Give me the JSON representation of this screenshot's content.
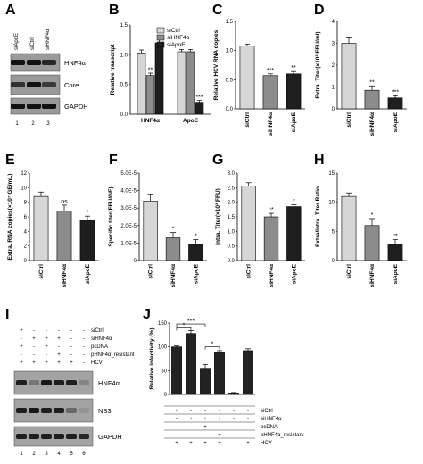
{
  "colors": {
    "siCtrl": "#d8d8d8",
    "siHNF4a": "#8c8c8c",
    "siApoE": "#1e1e1e",
    "blot_bg": "#6e6e6e",
    "band": "#111111"
  },
  "panel_letters": [
    "A",
    "B",
    "C",
    "D",
    "E",
    "F",
    "G",
    "H",
    "I",
    "J"
  ],
  "blot_A": {
    "lane_headers": [
      "siApoE",
      "siCtrl",
      "siHNF4α"
    ],
    "proteins": [
      "HNF4α",
      "Core",
      "GAPDH"
    ],
    "lane_numbers": [
      "1",
      "2",
      "3"
    ]
  },
  "blot_I": {
    "condition_rows": [
      "siCtrl",
      "siHNF4α",
      "pcDNA",
      "pHNF4α_resistant",
      "HCV"
    ],
    "matrix": [
      [
        "+",
        "-",
        "-",
        "-",
        "-",
        "-"
      ],
      [
        "-",
        "+",
        "+",
        "+",
        "-",
        "-"
      ],
      [
        "+",
        "-",
        "+",
        "-",
        "-",
        "-"
      ],
      [
        "-",
        "-",
        "-",
        "+",
        "-",
        "-"
      ],
      [
        "+",
        "+",
        "+",
        "+",
        "+",
        "-"
      ]
    ],
    "proteins": [
      "HNF4α",
      "NS3",
      "GAPDH"
    ],
    "lane_numbers": [
      "1",
      "2",
      "3",
      "4",
      "5",
      "6"
    ]
  },
  "chart_data": [
    {
      "panel": "B",
      "type": "bar",
      "categories": [
        "HNF4α",
        "ApoE"
      ],
      "series": [
        {
          "name": "siCtrl",
          "values": [
            1.03,
            1.05
          ],
          "errors": [
            0.05,
            0.04
          ]
        },
        {
          "name": "siHNF4α",
          "values": [
            0.65,
            1.05
          ],
          "errors": [
            0.04,
            0.04
          ]
        },
        {
          "name": "siApoE",
          "values": [
            1.2,
            0.2
          ],
          "errors": [
            0.1,
            0.03
          ]
        }
      ],
      "ylabel": "Relative transcript",
      "ylim": [
        0,
        1.5
      ],
      "yticks": [
        "0.0",
        "0.5",
        "1.0",
        "1.5"
      ],
      "significance": [
        [
          "",
          "**",
          ""
        ],
        [
          "",
          "",
          "***"
        ]
      ],
      "legend": "top-right"
    },
    {
      "panel": "C",
      "type": "bar",
      "categories": [
        "siCtrl",
        "siHNF4α",
        "siApoE"
      ],
      "values": [
        1.08,
        0.57,
        0.6
      ],
      "errors": [
        0.03,
        0.03,
        0.04
      ],
      "significance": [
        "",
        "***",
        "**"
      ],
      "ylabel": "Relative HCV RNA copies",
      "ylim": [
        0,
        1.5
      ],
      "yticks": [
        "0.0",
        "0.5",
        "1.0",
        "1.5"
      ]
    },
    {
      "panel": "D",
      "type": "bar",
      "categories": [
        "siCtrl",
        "siHNF4α",
        "siApoE"
      ],
      "values": [
        3.0,
        0.85,
        0.5
      ],
      "errors": [
        0.25,
        0.2,
        0.1
      ],
      "significance": [
        "",
        "**",
        "***"
      ],
      "ylabel": "Extra. Titer(×10³ FFU/ml)",
      "ylim": [
        0,
        4
      ],
      "yticks": [
        "0",
        "1",
        "2",
        "3",
        "4"
      ]
    },
    {
      "panel": "E",
      "type": "bar",
      "categories": [
        "siCtrl",
        "siHNF4α",
        "siApoE"
      ],
      "values": [
        8.8,
        6.8,
        5.6
      ],
      "errors": [
        0.6,
        0.8,
        0.5
      ],
      "significance": [
        "",
        "ns",
        "*"
      ],
      "ylabel": "Extra. RNA copies(×10⁷ GE/mL)",
      "ylim": [
        0,
        12
      ],
      "yticks": [
        "0",
        "2",
        "4",
        "6",
        "8",
        "10",
        "12"
      ]
    },
    {
      "panel": "F",
      "type": "bar",
      "categories": [
        "siCtrl",
        "siHNF4α",
        "siApoE"
      ],
      "values": [
        3.4e-05,
        1.3e-05,
        9e-06
      ],
      "errors": [
        4e-06,
        3e-06,
        3e-06
      ],
      "significance": [
        "",
        "*",
        "*"
      ],
      "ylabel": "Specific titer(FFU/GE)",
      "ylim": [
        0,
        5e-05
      ],
      "yticks": [
        "0",
        "1.0E-5",
        "2.0E-5",
        "3.0E-5",
        "4.0E-5",
        "5.0E-5"
      ]
    },
    {
      "panel": "G",
      "type": "bar",
      "categories": [
        "siCtrl",
        "siHNF4α",
        "siApoE"
      ],
      "values": [
        2.55,
        1.5,
        1.85
      ],
      "errors": [
        0.12,
        0.12,
        0.06
      ],
      "significance": [
        "",
        "**",
        "*"
      ],
      "ylabel": "Intra. Titer(×10³ FFU)",
      "ylim": [
        0,
        3
      ],
      "yticks": [
        "0.0",
        "0.5",
        "1.0",
        "1.5",
        "2.0",
        "2.5",
        "3.0"
      ]
    },
    {
      "panel": "H",
      "type": "bar",
      "categories": [
        "siCtrl",
        "siHNF4α",
        "siApoE"
      ],
      "values": [
        11.0,
        6.0,
        2.8
      ],
      "errors": [
        0.6,
        1.2,
        0.8
      ],
      "significance": [
        "",
        "*",
        "**"
      ],
      "ylabel": "Extra/Intra. Titer Ratio",
      "ylim": [
        0,
        15
      ],
      "yticks": [
        "0",
        "5",
        "10",
        "15"
      ]
    },
    {
      "panel": "J",
      "type": "bar",
      "categories": [
        "1",
        "2",
        "3",
        "4",
        "5",
        "6"
      ],
      "values": [
        100,
        128,
        55,
        88,
        3,
        92
      ],
      "errors": [
        2,
        6,
        8,
        4,
        1,
        4
      ],
      "ylabel": "Relative infectivity (%)",
      "ylim": [
        0,
        150
      ],
      "yticks": [
        "0",
        "50",
        "100",
        "150"
      ],
      "brackets": [
        {
          "from": 0,
          "to": 1,
          "label": "*"
        },
        {
          "from": 0,
          "to": 2,
          "label": "***"
        },
        {
          "from": 2,
          "to": 3,
          "label": "*"
        }
      ],
      "condition_rows": [
        "siCtrl",
        "siHNF4α",
        "pcDNA",
        "pHNF4α_resistant",
        "HCV"
      ],
      "matrix": [
        [
          "+",
          "-",
          "-",
          "-",
          "-",
          "-"
        ],
        [
          "-",
          "+",
          "+",
          "+",
          "-",
          "-"
        ],
        [
          "-",
          "-",
          "+",
          "-",
          "-",
          "-"
        ],
        [
          "-",
          "-",
          "-",
          "+",
          "-",
          "-"
        ],
        [
          "+",
          "+",
          "+",
          "+",
          "-",
          "+"
        ]
      ]
    }
  ]
}
